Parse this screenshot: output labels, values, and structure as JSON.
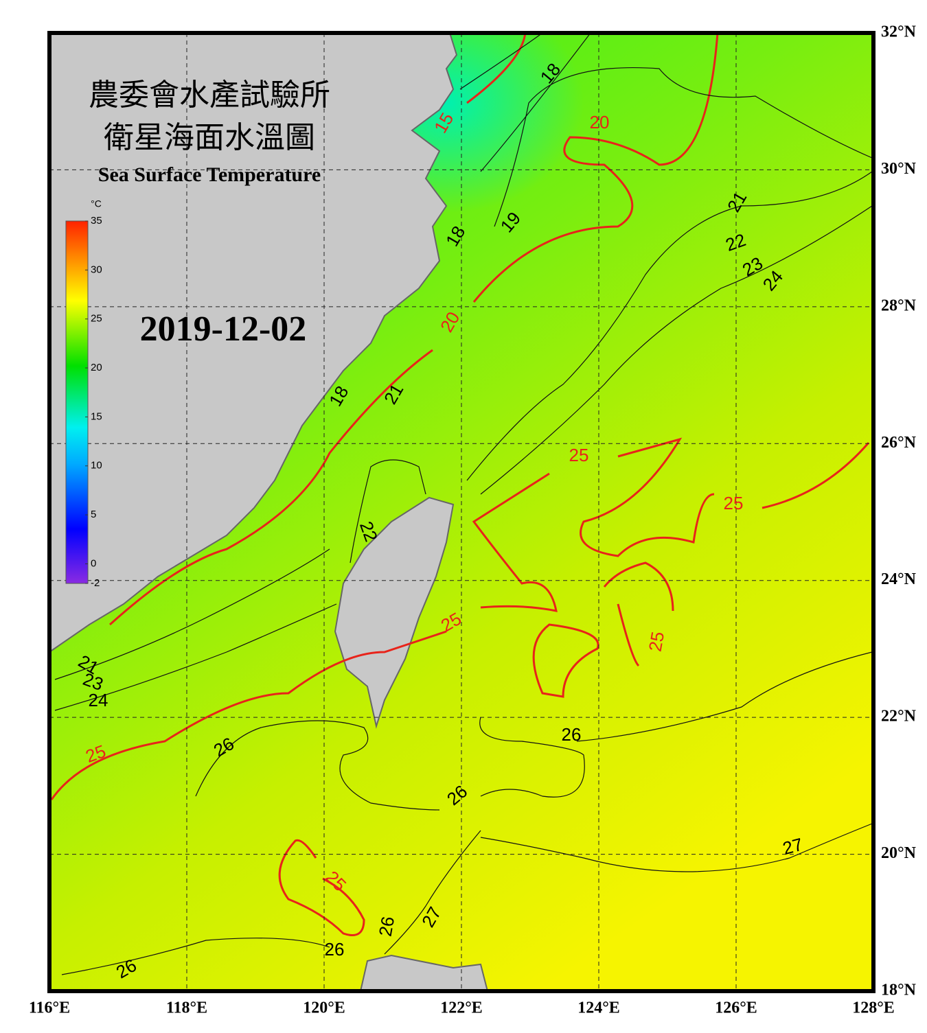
{
  "map": {
    "title_zh": "農委會水產試驗所",
    "subtitle_zh": "衛星海面水溫圖",
    "title_en": "Sea Surface Temperature",
    "date": "2019-12-02",
    "lonlim": [
      116,
      128
    ],
    "latlim": [
      18,
      32
    ],
    "lon_ticks": [
      {
        "value": 116,
        "label": "116°E"
      },
      {
        "value": 118,
        "label": "118°E"
      },
      {
        "value": 120,
        "label": "120°E"
      },
      {
        "value": 122,
        "label": "122°E"
      },
      {
        "value": 124,
        "label": "124°E"
      },
      {
        "value": 126,
        "label": "126°E"
      },
      {
        "value": 128,
        "label": "128°E"
      }
    ],
    "lat_ticks": [
      {
        "value": 18,
        "label": "18°N"
      },
      {
        "value": 20,
        "label": "20°N"
      },
      {
        "value": 22,
        "label": "22°N"
      },
      {
        "value": 24,
        "label": "24°N"
      },
      {
        "value": 26,
        "label": "26°N"
      },
      {
        "value": 28,
        "label": "28°N"
      },
      {
        "value": 30,
        "label": "30°N"
      },
      {
        "value": 32,
        "label": "32°N"
      }
    ],
    "colorbar": {
      "unit": "°C",
      "range": [
        -2,
        35
      ],
      "ticks": [
        35,
        30,
        25,
        20,
        15,
        10,
        5,
        0,
        -2
      ]
    },
    "contour_labels": [
      15,
      18,
      20,
      21,
      22,
      23,
      24,
      19,
      18,
      20,
      21,
      18,
      22,
      25,
      25,
      25,
      25,
      25,
      26,
      26,
      26,
      27,
      25,
      26,
      27,
      26,
      26,
      21,
      23,
      24
    ]
  }
}
